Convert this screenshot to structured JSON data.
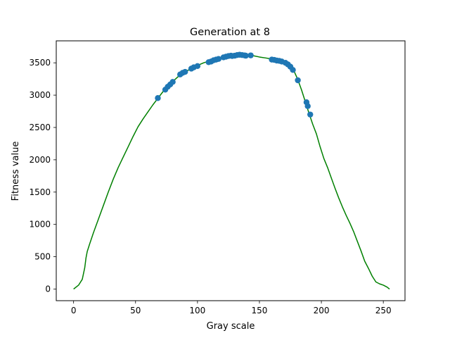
{
  "chart_data": {
    "type": "line+scatter",
    "title": "Generation at 8",
    "xlabel": "Gray scale",
    "ylabel": "Fitness value",
    "xlim": [
      -14,
      267.5
    ],
    "ylim": [
      -180,
      3840
    ],
    "x_ticks": [
      0,
      50,
      100,
      150,
      200,
      250
    ],
    "y_ticks": [
      0,
      500,
      1000,
      1500,
      2000,
      2500,
      3000,
      3500
    ],
    "grid": false,
    "colors": {
      "line": "#008000",
      "points": "#1f77b4"
    },
    "line": {
      "x": [
        0,
        4,
        7,
        9,
        10,
        11,
        13,
        16,
        20,
        24,
        28,
        32,
        36,
        40,
        44,
        48,
        52,
        56,
        60,
        64,
        68,
        72,
        76,
        80,
        84,
        88,
        92,
        96,
        100,
        105,
        110,
        115,
        120,
        125,
        130,
        135,
        140,
        145,
        150,
        155,
        160,
        165,
        170,
        175,
        178,
        181,
        184,
        187,
        190,
        193,
        196,
        199,
        202,
        205,
        208,
        211,
        214,
        217,
        220,
        223,
        226,
        229,
        232,
        235,
        238,
        241,
        244,
        247,
        250,
        253,
        255
      ],
      "y": [
        0,
        60,
        150,
        330,
        480,
        580,
        700,
        870,
        1080,
        1290,
        1500,
        1700,
        1880,
        2040,
        2200,
        2360,
        2510,
        2630,
        2740,
        2850,
        2950,
        3050,
        3130,
        3210,
        3280,
        3340,
        3380,
        3420,
        3460,
        3500,
        3530,
        3555,
        3580,
        3600,
        3615,
        3625,
        3620,
        3610,
        3590,
        3575,
        3560,
        3540,
        3510,
        3460,
        3370,
        3240,
        3080,
        2900,
        2720,
        2550,
        2400,
        2200,
        2020,
        1880,
        1720,
        1560,
        1410,
        1270,
        1140,
        1020,
        890,
        740,
        590,
        430,
        320,
        200,
        110,
        80,
        60,
        30,
        0
      ]
    },
    "points": {
      "x": [
        68,
        74,
        76,
        78,
        80,
        86,
        88,
        90,
        95,
        97,
        100,
        109,
        111,
        113,
        115,
        117,
        121,
        123,
        125,
        127,
        128,
        130,
        132,
        134,
        136,
        138,
        139,
        143,
        160,
        162,
        164,
        166,
        168,
        171,
        173,
        175,
        177,
        181,
        188,
        189,
        191
      ],
      "y": [
        2955,
        3085,
        3130,
        3165,
        3205,
        3320,
        3345,
        3360,
        3410,
        3430,
        3450,
        3510,
        3520,
        3540,
        3550,
        3560,
        3585,
        3595,
        3605,
        3610,
        3605,
        3610,
        3620,
        3625,
        3620,
        3615,
        3610,
        3615,
        3550,
        3545,
        3535,
        3530,
        3520,
        3500,
        3475,
        3440,
        3390,
        3230,
        2890,
        2830,
        2700
      ]
    }
  }
}
